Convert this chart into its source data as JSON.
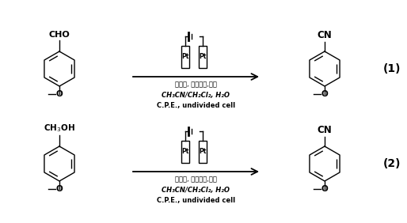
{
  "background_color": "#ffffff",
  "figure_width": 5.14,
  "figure_height": 2.82,
  "dpi": 100,
  "reaction1": {
    "conditions_line1": "电解质, 电彐化剂,氮源",
    "conditions_line2": "CH₃CN/CH₂Cl₂, H₂O",
    "conditions_line3": "C.P.E., undivided cell",
    "number": "(1)"
  },
  "reaction2": {
    "conditions_line1": "电解质, 电彐化剂,氮源",
    "conditions_line2": "CH₃CN/CH₂Cl₂, H₂O",
    "conditions_line3": "C.P.E., undivided cell",
    "number": "(2)"
  }
}
